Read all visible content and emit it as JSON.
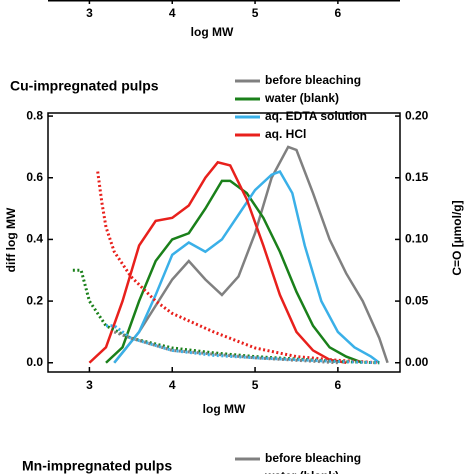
{
  "chart_data": {
    "type": "line",
    "title": "Cu-impregnated pulps",
    "x_label": "log MW",
    "y_label": "diff log MW",
    "y2_label": "C=O [µmol/g]",
    "xlim": [
      2.5,
      6.75
    ],
    "xticks": [
      3,
      4,
      5,
      6
    ],
    "ylim": [
      -0.03,
      0.81
    ],
    "yticks": [
      {
        "value": 0,
        "label": "0.0"
      },
      {
        "value": 0.2,
        "label": "0.2"
      },
      {
        "value": 0.4,
        "label": "0.4"
      },
      {
        "value": 0.6,
        "label": "0.6"
      },
      {
        "value": 0.8,
        "label": "0.8"
      }
    ],
    "y2lim": [
      -0.0075,
      0.2025
    ],
    "y2ticks": [
      {
        "value": 0,
        "label": "0.00"
      },
      {
        "value": 0.05,
        "label": "0.05"
      },
      {
        "value": 0.1,
        "label": "0.10"
      },
      {
        "value": 0.15,
        "label": "0.15"
      },
      {
        "value": 0.2,
        "label": "0.20"
      }
    ],
    "legend": "top-right",
    "series": [
      {
        "name": "before bleaching",
        "color": "#808080",
        "x": [
          3.3,
          3.6,
          4.0,
          4.2,
          4.4,
          4.6,
          4.8,
          5.0,
          5.2,
          5.4,
          5.5,
          5.7,
          5.9,
          6.1,
          6.3,
          6.5,
          6.6
        ],
        "values": [
          0,
          0.1,
          0.27,
          0.33,
          0.27,
          0.22,
          0.28,
          0.42,
          0.6,
          0.7,
          0.69,
          0.55,
          0.4,
          0.29,
          0.2,
          0.08,
          0
        ]
      },
      {
        "name": "water (blank)",
        "color": "#1a801a",
        "x": [
          3.2,
          3.4,
          3.6,
          3.8,
          4.0,
          4.2,
          4.4,
          4.6,
          4.7,
          4.9,
          5.1,
          5.3,
          5.5,
          5.7,
          5.9,
          6.1,
          6.3
        ],
        "values": [
          0,
          0.05,
          0.2,
          0.33,
          0.4,
          0.42,
          0.5,
          0.59,
          0.59,
          0.55,
          0.47,
          0.36,
          0.23,
          0.12,
          0.05,
          0.02,
          0
        ]
      },
      {
        "name": "aq. EDTA solution",
        "color": "#3ab0e8",
        "x": [
          3.3,
          3.6,
          3.8,
          4.0,
          4.2,
          4.4,
          4.6,
          4.8,
          5.0,
          5.2,
          5.3,
          5.45,
          5.6,
          5.8,
          6.0,
          6.2,
          6.4,
          6.5
        ],
        "values": [
          0,
          0.1,
          0.22,
          0.35,
          0.39,
          0.36,
          0.4,
          0.48,
          0.56,
          0.61,
          0.62,
          0.55,
          0.38,
          0.2,
          0.1,
          0.05,
          0.02,
          0
        ]
      },
      {
        "name": "aq. HCl",
        "color": "#e8201c",
        "x": [
          3.0,
          3.2,
          3.4,
          3.6,
          3.8,
          4.0,
          4.2,
          4.4,
          4.55,
          4.7,
          4.9,
          5.1,
          5.3,
          5.5,
          5.7,
          5.9,
          6.1
        ],
        "values": [
          0,
          0.05,
          0.2,
          0.38,
          0.46,
          0.47,
          0.51,
          0.6,
          0.65,
          0.64,
          0.53,
          0.38,
          0.22,
          0.1,
          0.04,
          0.01,
          0
        ]
      },
      {
        "color": "#e8201c",
        "axis": "y2",
        "dotted": true,
        "x": [
          3.1,
          3.15,
          3.2,
          3.3,
          3.5,
          3.8,
          4.0,
          4.5,
          5.0,
          5.5,
          6.0,
          6.5
        ],
        "values": [
          0.155,
          0.13,
          0.11,
          0.09,
          0.07,
          0.05,
          0.04,
          0.025,
          0.012,
          0.005,
          0.002,
          0
        ]
      },
      {
        "color": "#1a801a",
        "axis": "y2",
        "dotted": true,
        "x": [
          2.8,
          2.9,
          3.0,
          3.2,
          3.5,
          4.0,
          4.5,
          5.0,
          5.5,
          6.0,
          6.5
        ],
        "values": [
          0.075,
          0.075,
          0.05,
          0.03,
          0.02,
          0.012,
          0.008,
          0.005,
          0.003,
          0.001,
          0
        ]
      },
      {
        "color": "#3ab0e8",
        "axis": "y2",
        "dotted": true,
        "x": [
          3.2,
          3.3,
          3.5,
          4.0,
          4.5,
          5.0,
          6.0,
          6.5
        ],
        "values": [
          0.03,
          0.03,
          0.02,
          0.01,
          0.006,
          0.004,
          0.001,
          0
        ]
      },
      {
        "color": "#808080",
        "axis": "y2",
        "dotted": true,
        "x": [
          3.3,
          3.5,
          4.0,
          5.0,
          6.0
        ],
        "values": [
          0.025,
          0.02,
          0.01,
          0.004,
          0
        ]
      }
    ]
  },
  "top_fragment": {
    "xticks": [
      3,
      4,
      5,
      6
    ],
    "x_label": "log MW"
  },
  "bottom_fragment": {
    "title": "Mn-impregnated pulps",
    "legend": [
      {
        "name": "before bleaching",
        "color": "#808080"
      },
      {
        "name": "water (blank)",
        "color": "#1a801a"
      }
    ]
  }
}
